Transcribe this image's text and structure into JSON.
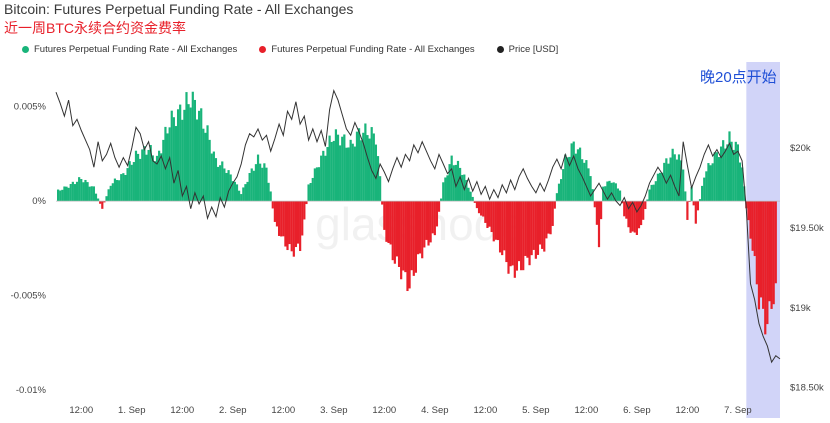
{
  "header": {
    "title": "Bitcoin: Futures Perpetual Funding Rate - All Exchanges",
    "subtitle": "近一周BTC永续合约资金费率"
  },
  "legend": [
    {
      "label": "Futures Perpetual Funding Rate - All Exchanges",
      "color": "#19b47a"
    },
    {
      "label": "Futures Perpetual Funding Rate - All Exchanges",
      "color": "#e8202a"
    },
    {
      "label": "Price [USD]",
      "color": "#222222"
    }
  ],
  "annotation": {
    "text": "晚20点开始",
    "color": "#1f4fd6",
    "fill": "#c9cdf7"
  },
  "watermark": "glassnode",
  "colors": {
    "positive": "#19b47a",
    "negative": "#e8202a",
    "price": "#333333"
  },
  "chart_data": {
    "type": "bar",
    "x_ticks": [
      "12:00",
      "1. Sep",
      "12:00",
      "2. Sep",
      "12:00",
      "3. Sep",
      "12:00",
      "4. Sep",
      "12:00",
      "5. Sep",
      "12:00",
      "6. Sep",
      "12:00",
      "7. Sep"
    ],
    "y_left_ticks": [
      "0.005%",
      "0%",
      "-0.005%",
      "-0.01%"
    ],
    "y_right_ticks": [
      "$20k",
      "$19.50k",
      "$19k",
      "$18.50k"
    ],
    "ylim_left": [
      -0.0102,
      0.0072
    ],
    "ylim_right": [
      18460,
      20520
    ],
    "grid": false,
    "legend_position": "top-left",
    "x_range_hours": [
      0,
      172
    ],
    "funding_series": {
      "name": "Futures Perpetual Funding Rate - All Exchanges",
      "unit": "%",
      "points": [
        [
          0,
          0.0005
        ],
        [
          3,
          0.0008
        ],
        [
          6,
          0.0012
        ],
        [
          9,
          0.0007
        ],
        [
          11,
          -0.0004
        ],
        [
          13,
          0.0009
        ],
        [
          16,
          0.0014
        ],
        [
          19,
          0.0024
        ],
        [
          22,
          0.0028
        ],
        [
          24,
          0.0022
        ],
        [
          27,
          0.0042
        ],
        [
          30,
          0.0048
        ],
        [
          32,
          0.0055
        ],
        [
          34,
          0.0047
        ],
        [
          36,
          0.0036
        ],
        [
          38,
          0.0021
        ],
        [
          40,
          0.0018
        ],
        [
          42,
          0.0012
        ],
        [
          44,
          0.0004
        ],
        [
          46,
          0.0014
        ],
        [
          48,
          0.0022
        ],
        [
          50,
          0.0017
        ],
        [
          51,
          0.0005
        ],
        [
          52,
          -0.0012
        ],
        [
          54,
          -0.0021
        ],
        [
          56,
          -0.0027
        ],
        [
          58,
          -0.0024
        ],
        [
          59,
          -0.0011
        ],
        [
          60,
          0.0008
        ],
        [
          62,
          0.0018
        ],
        [
          64,
          0.0027
        ],
        [
          66,
          0.0035
        ],
        [
          68,
          0.0033
        ],
        [
          70,
          0.0029
        ],
        [
          72,
          0.0036
        ],
        [
          74,
          0.0037
        ],
        [
          76,
          0.0034
        ],
        [
          77,
          0.0012
        ],
        [
          78,
          -0.0016
        ],
        [
          80,
          -0.0029
        ],
        [
          82,
          -0.0037
        ],
        [
          84,
          -0.0045
        ],
        [
          86,
          -0.0031
        ],
        [
          88,
          -0.0023
        ],
        [
          90,
          -0.0018
        ],
        [
          91,
          -0.0006
        ],
        [
          92,
          0.0009
        ],
        [
          94,
          0.0022
        ],
        [
          96,
          0.0018
        ],
        [
          98,
          0.0008
        ],
        [
          100,
          -0.0004
        ],
        [
          102,
          -0.0011
        ],
        [
          104,
          -0.0019
        ],
        [
          106,
          -0.0027
        ],
        [
          108,
          -0.0037
        ],
        [
          110,
          -0.0036
        ],
        [
          112,
          -0.0031
        ],
        [
          114,
          -0.0028
        ],
        [
          116,
          -0.0024
        ],
        [
          118,
          -0.0013
        ],
        [
          119,
          0.0004
        ],
        [
          121,
          0.0022
        ],
        [
          123,
          0.003
        ],
        [
          125,
          0.0024
        ],
        [
          127,
          0.0015
        ],
        [
          128,
          -0.0003
        ],
        [
          129,
          -0.0025
        ],
        [
          130,
          0.0008
        ],
        [
          132,
          0.0011
        ],
        [
          134,
          0.0006
        ],
        [
          135,
          -0.0008
        ],
        [
          137,
          -0.0018
        ],
        [
          139,
          -0.0014
        ],
        [
          141,
          0.0006
        ],
        [
          143,
          0.0013
        ],
        [
          145,
          0.0021
        ],
        [
          147,
          0.0026
        ],
        [
          149,
          0.0019
        ],
        [
          150,
          -0.0009
        ],
        [
          151,
          0.0008
        ],
        [
          152,
          -0.0012
        ],
        [
          154,
          0.0014
        ],
        [
          156,
          0.0022
        ],
        [
          158,
          0.0028
        ],
        [
          160,
          0.0033
        ],
        [
          162,
          0.0028
        ],
        [
          163,
          0.0018
        ],
        [
          164,
          -0.0004
        ],
        [
          165,
          -0.0018
        ],
        [
          166,
          -0.0033
        ],
        [
          167,
          -0.0052
        ],
        [
          168,
          -0.006
        ],
        [
          169,
          -0.0066
        ],
        [
          170,
          -0.0053
        ],
        [
          171,
          -0.0049
        ]
      ]
    },
    "price_series": {
      "name": "Price [USD]",
      "unit": "USD",
      "points": [
        [
          0,
          20350
        ],
        [
          1,
          20280
        ],
        [
          2,
          20200
        ],
        [
          3,
          20300
        ],
        [
          4,
          20140
        ],
        [
          5,
          20180
        ],
        [
          6,
          20110
        ],
        [
          7,
          20050
        ],
        [
          8,
          19990
        ],
        [
          9,
          19880
        ],
        [
          10,
          20040
        ],
        [
          11,
          19920
        ],
        [
          12,
          19960
        ],
        [
          13,
          20030
        ],
        [
          14,
          19940
        ],
        [
          15,
          19880
        ],
        [
          16,
          19940
        ],
        [
          17,
          19890
        ],
        [
          18,
          20000
        ],
        [
          19,
          20130
        ],
        [
          20,
          20090
        ],
        [
          21,
          19990
        ],
        [
          22,
          20040
        ],
        [
          23,
          19920
        ],
        [
          24,
          19900
        ],
        [
          25,
          19950
        ],
        [
          26,
          19870
        ],
        [
          27,
          19940
        ],
        [
          28,
          19780
        ],
        [
          29,
          19860
        ],
        [
          30,
          19700
        ],
        [
          31,
          19760
        ],
        [
          32,
          19620
        ],
        [
          33,
          19720
        ],
        [
          34,
          19650
        ],
        [
          35,
          19700
        ],
        [
          36,
          19560
        ],
        [
          37,
          19630
        ],
        [
          38,
          19570
        ],
        [
          39,
          19690
        ],
        [
          40,
          19630
        ],
        [
          41,
          19730
        ],
        [
          42,
          19780
        ],
        [
          43,
          19820
        ],
        [
          44,
          19900
        ],
        [
          45,
          20020
        ],
        [
          46,
          20090
        ],
        [
          47,
          20070
        ],
        [
          48,
          20120
        ],
        [
          49,
          20050
        ],
        [
          50,
          20080
        ],
        [
          51,
          19980
        ],
        [
          52,
          20060
        ],
        [
          53,
          20150
        ],
        [
          54,
          20080
        ],
        [
          55,
          20230
        ],
        [
          56,
          20180
        ],
        [
          57,
          20290
        ],
        [
          58,
          20150
        ],
        [
          59,
          20200
        ],
        [
          60,
          20050
        ],
        [
          61,
          20120
        ],
        [
          62,
          20040
        ],
        [
          63,
          20110
        ],
        [
          64,
          20010
        ],
        [
          65,
          20240
        ],
        [
          66,
          20360
        ],
        [
          67,
          20300
        ],
        [
          68,
          20210
        ],
        [
          69,
          20120
        ],
        [
          70,
          20080
        ],
        [
          71,
          20160
        ],
        [
          72,
          20100
        ],
        [
          73,
          20030
        ],
        [
          74,
          19940
        ],
        [
          75,
          19860
        ],
        [
          76,
          19810
        ],
        [
          77,
          19900
        ],
        [
          78,
          19850
        ],
        [
          79,
          19790
        ],
        [
          80,
          19870
        ],
        [
          81,
          19940
        ],
        [
          82,
          19880
        ],
        [
          83,
          19960
        ],
        [
          84,
          19920
        ],
        [
          85,
          20020
        ],
        [
          86,
          19970
        ],
        [
          87,
          20040
        ],
        [
          88,
          19980
        ],
        [
          89,
          19920
        ],
        [
          90,
          19870
        ],
        [
          91,
          19960
        ],
        [
          92,
          19900
        ],
        [
          93,
          19840
        ],
        [
          94,
          19870
        ],
        [
          95,
          19760
        ],
        [
          96,
          19820
        ],
        [
          97,
          19740
        ],
        [
          98,
          19810
        ],
        [
          99,
          19730
        ],
        [
          100,
          19790
        ],
        [
          101,
          19710
        ],
        [
          102,
          19760
        ],
        [
          103,
          19680
        ],
        [
          104,
          19740
        ],
        [
          105,
          19690
        ],
        [
          106,
          19770
        ],
        [
          107,
          19720
        ],
        [
          108,
          19800
        ],
        [
          109,
          19740
        ],
        [
          110,
          19820
        ],
        [
          111,
          19870
        ],
        [
          112,
          19810
        ],
        [
          113,
          19760
        ],
        [
          114,
          19720
        ],
        [
          115,
          19780
        ],
        [
          116,
          19730
        ],
        [
          117,
          19800
        ],
        [
          118,
          19880
        ],
        [
          119,
          19930
        ],
        [
          120,
          19870
        ],
        [
          121,
          19960
        ],
        [
          122,
          19890
        ],
        [
          123,
          19950
        ],
        [
          124,
          19870
        ],
        [
          125,
          19820
        ],
        [
          126,
          19760
        ],
        [
          127,
          19700
        ],
        [
          128,
          19740
        ],
        [
          129,
          19780
        ],
        [
          130,
          19730
        ],
        [
          131,
          19680
        ],
        [
          132,
          19720
        ],
        [
          133,
          19670
        ],
        [
          134,
          19640
        ],
        [
          135,
          19690
        ],
        [
          136,
          19620
        ],
        [
          137,
          19660
        ],
        [
          138,
          19600
        ],
        [
          139,
          19640
        ],
        [
          140,
          19700
        ],
        [
          141,
          19780
        ],
        [
          142,
          19830
        ],
        [
          143,
          19880
        ],
        [
          144,
          19840
        ],
        [
          145,
          19780
        ],
        [
          146,
          19830
        ],
        [
          147,
          19760
        ],
        [
          148,
          19700
        ],
        [
          149,
          20040
        ],
        [
          150,
          19890
        ],
        [
          151,
          19750
        ],
        [
          152,
          19820
        ],
        [
          153,
          19880
        ],
        [
          154,
          19960
        ],
        [
          155,
          20020
        ],
        [
          156,
          19950
        ],
        [
          157,
          19990
        ],
        [
          158,
          19940
        ],
        [
          159,
          19980
        ],
        [
          160,
          20030
        ],
        [
          161,
          19960
        ],
        [
          162,
          19980
        ],
        [
          163,
          19920
        ],
        [
          164,
          19620
        ],
        [
          165,
          19150
        ],
        [
          166,
          19050
        ],
        [
          167,
          18900
        ],
        [
          168,
          18820
        ],
        [
          169,
          18760
        ],
        [
          170,
          18660
        ],
        [
          171,
          18700
        ],
        [
          172,
          18680
        ]
      ]
    },
    "highlight_band_hours": [
      164,
      172
    ]
  }
}
